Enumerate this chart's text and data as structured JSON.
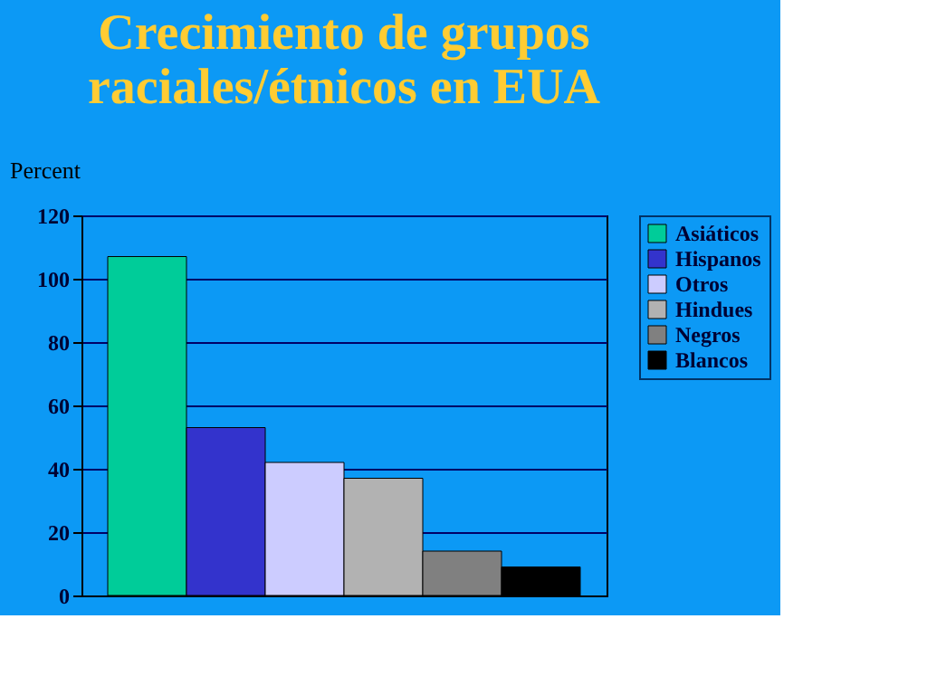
{
  "chart_data": {
    "type": "bar",
    "title": "Crecimiento de grupos raciales/étnicos en EUA",
    "ylabel": "Percent",
    "categories": [
      null
    ],
    "series": [
      {
        "name": "Asiáticos",
        "color": "#00cc99",
        "values": [
          107
        ]
      },
      {
        "name": "Hispanos",
        "color": "#3333cc",
        "values": [
          53
        ]
      },
      {
        "name": "Otros",
        "color": "#ccccff",
        "values": [
          42
        ]
      },
      {
        "name": "Hindues",
        "color": "#b2b2b2",
        "values": [
          37
        ]
      },
      {
        "name": "Negros",
        "color": "#808080",
        "values": [
          14
        ]
      },
      {
        "name": "Blancos",
        "color": "#000000",
        "values": [
          9
        ]
      }
    ],
    "ylim": [
      0,
      120
    ],
    "yticks": [
      0,
      20,
      40,
      60,
      80,
      100,
      120
    ],
    "grid": "y",
    "legend": "right"
  }
}
